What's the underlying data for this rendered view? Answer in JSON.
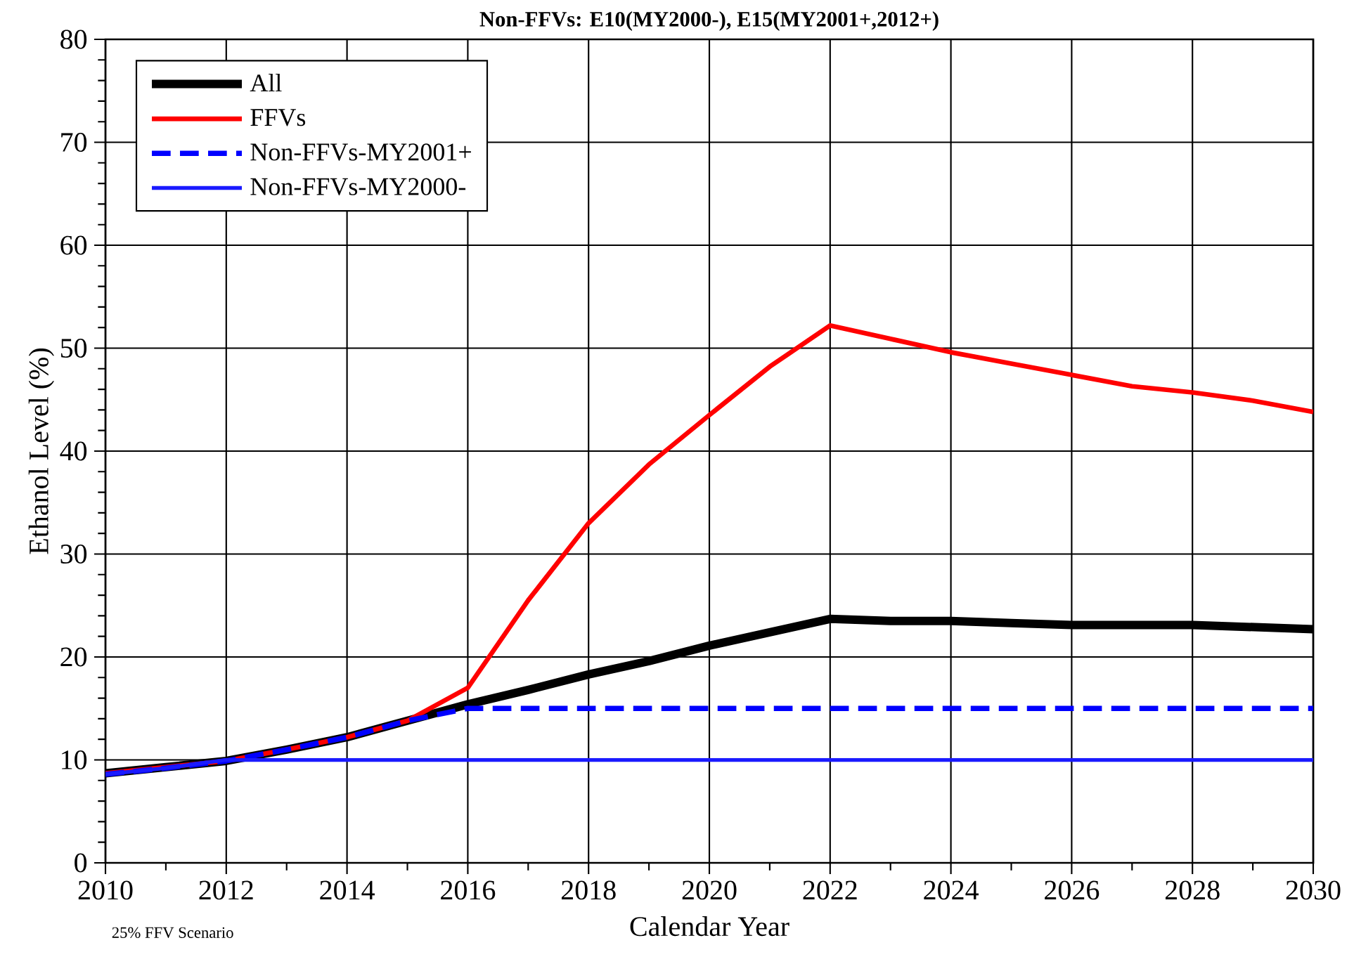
{
  "chart_data": {
    "type": "line",
    "title": "Non-FFVs: E10(MY2000-), E15(MY2001+,2012+)",
    "xlabel": "Calendar Year",
    "ylabel": "Ethanol Level (%)",
    "annotations": [
      "25% FFV Scenario"
    ],
    "x": [
      2010,
      2011,
      2012,
      2013,
      2014,
      2015,
      2016,
      2017,
      2018,
      2019,
      2020,
      2021,
      2022,
      2023,
      2024,
      2025,
      2026,
      2027,
      2028,
      2029,
      2030
    ],
    "series": [
      {
        "name": "All",
        "color": "#000000",
        "line_style": "solid",
        "values": [
          8.7,
          9.3,
          9.9,
          11.0,
          12.2,
          13.8,
          15.4,
          16.8,
          18.3,
          19.6,
          21.1,
          22.4,
          23.7,
          23.5,
          23.5,
          23.3,
          23.1,
          23.1,
          23.1,
          22.9,
          22.7
        ]
      },
      {
        "name": "FFVs",
        "color": "#ff0000",
        "line_style": "solid",
        "values": [
          8.7,
          9.3,
          9.9,
          11.0,
          12.2,
          13.8,
          17.0,
          25.5,
          33.0,
          38.7,
          43.5,
          48.2,
          52.2,
          50.9,
          49.6,
          48.5,
          47.4,
          46.3,
          45.7,
          44.9,
          43.8
        ]
      },
      {
        "name": "Non-FFVs-MY2001+",
        "color": "#0000ff",
        "line_style": "dashed",
        "values": [
          8.6,
          9.2,
          9.9,
          11.0,
          12.2,
          13.8,
          15.0,
          15.0,
          15.0,
          15.0,
          15.0,
          15.0,
          15.0,
          15.0,
          15.0,
          15.0,
          15.0,
          15.0,
          15.0,
          15.0,
          15.0
        ]
      },
      {
        "name": "Non-FFVs-MY2000-",
        "color": "#1a1aff",
        "line_style": "solid",
        "values": [
          8.6,
          9.2,
          10.0,
          10.0,
          10.0,
          10.0,
          10.0,
          10.0,
          10.0,
          10.0,
          10.0,
          10.0,
          10.0,
          10.0,
          10.0,
          10.0,
          10.0,
          10.0,
          10.0,
          10.0,
          10.0
        ]
      }
    ],
    "xlim": [
      2010,
      2030
    ],
    "xticks": [
      2010,
      2012,
      2014,
      2016,
      2018,
      2020,
      2022,
      2024,
      2026,
      2028,
      2030
    ],
    "ylim": [
      0,
      80
    ],
    "yticks": [
      0,
      10,
      20,
      30,
      40,
      50,
      60,
      70,
      80
    ],
    "grid": true,
    "legend": "top left",
    "marker": "none"
  }
}
